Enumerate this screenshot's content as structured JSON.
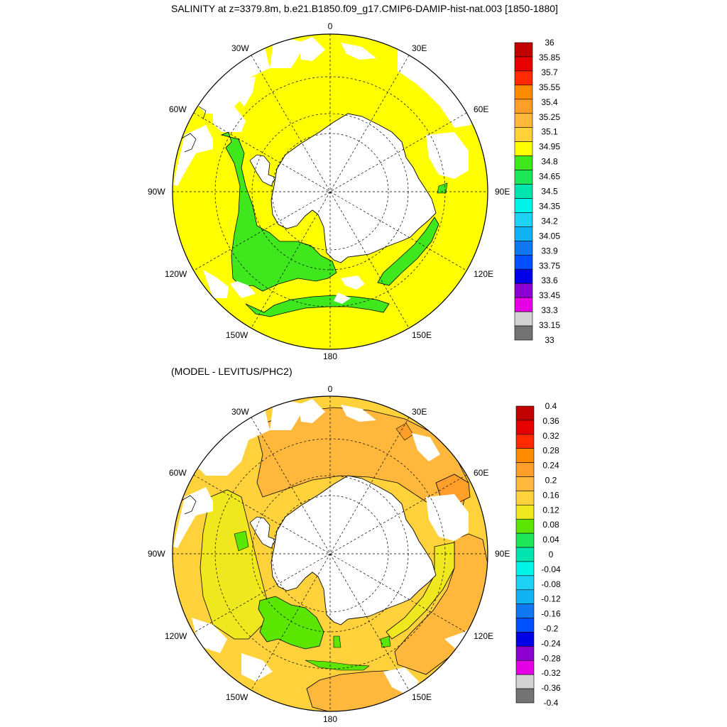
{
  "panels": [
    {
      "title": "SALINITY at z=3379.8m, b.e21.B1850.f09_g17.CMIP6-DAMIP-hist-nat.003 [1850-1880]",
      "colorbar": {
        "labels": [
          "36",
          "35.85",
          "35.7",
          "35.55",
          "35.4",
          "35.25",
          "35.1",
          "34.95",
          "34.8",
          "34.65",
          "34.5",
          "34.35",
          "34.2",
          "34.05",
          "33.9",
          "33.75",
          "33.6",
          "33.45",
          "33.3",
          "33.15",
          "33"
        ],
        "colors": [
          "#c10000",
          "#e60000",
          "#ff2a00",
          "#ff8c00",
          "#ff9e28",
          "#ffb83c",
          "#ffd23c",
          "#ffff00",
          "#3fe81c",
          "#1ee85a",
          "#00e5b0",
          "#00f5e8",
          "#1ed2f5",
          "#10b4f5",
          "#0f78f0",
          "#0050ff",
          "#0000e6",
          "#8c00d2",
          "#e600e6",
          "#d2d2d2",
          "#737373"
        ]
      }
    },
    {
      "title": "(MODEL - LEVITUS/PHC2)",
      "colorbar": {
        "labels": [
          "0.4",
          "0.36",
          "0.32",
          "0.28",
          "0.24",
          "0.2",
          "0.16",
          "0.12",
          "0.08",
          "0.04",
          "0",
          "-0.04",
          "-0.08",
          "-0.12",
          "-0.16",
          "-0.2",
          "-0.24",
          "-0.28",
          "-0.32",
          "-0.36",
          "-0.4"
        ],
        "colors": [
          "#c10000",
          "#e60000",
          "#ff2a00",
          "#ff8c00",
          "#ff9e28",
          "#ffb83c",
          "#ffd23c",
          "#f0e81e",
          "#5ae600",
          "#1ee85a",
          "#00e5b0",
          "#00f5e8",
          "#1ed2f5",
          "#10b4f5",
          "#0f78f0",
          "#0050ff",
          "#0000e6",
          "#8c00d2",
          "#e600e6",
          "#d2d2d2",
          "#737373"
        ]
      }
    }
  ],
  "longitude_labels": [
    "0",
    "30E",
    "60E",
    "90E",
    "120E",
    "150E",
    "180",
    "150W",
    "120W",
    "90W",
    "60W",
    "30W"
  ],
  "colors": {
    "yellow": "#ffff00",
    "green_top": "#3fe81c",
    "orange": "#ffb83c",
    "light_yellow": "#f0e81e",
    "green_bottom": "#5ae600",
    "dark_orange": "#ff9e28"
  }
}
